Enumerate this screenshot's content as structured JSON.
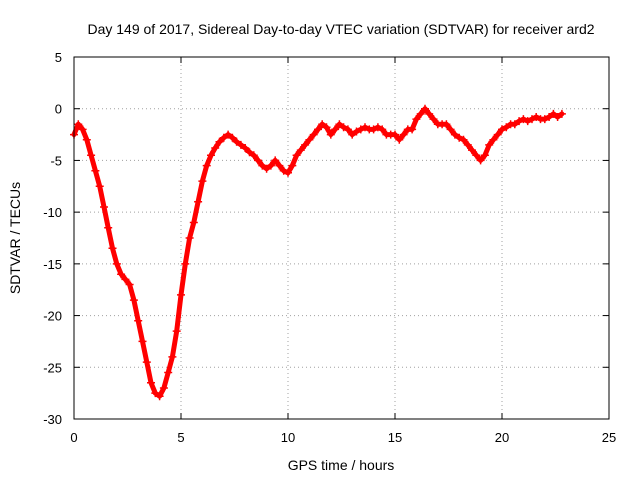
{
  "chart_data": {
    "type": "scatter",
    "title": "Day 149 of 2017, Sidereal Day-to-day VTEC variation (SDTVAR) for receiver ard2",
    "xlabel": "GPS time / hours",
    "ylabel": "SDTVAR / TECUs",
    "xlim": [
      0,
      25
    ],
    "ylim": [
      -30,
      5
    ],
    "xticks": [
      0,
      5,
      10,
      15,
      20,
      25
    ],
    "xtick_labels": [
      "0",
      "5",
      "10",
      "15",
      "20",
      "25"
    ],
    "yticks": [
      5,
      0,
      -5,
      -10,
      -15,
      -20,
      -25,
      -30
    ],
    "ytick_labels": [
      "5",
      "0",
      "-5",
      "-10",
      "-15",
      "-20",
      "-25",
      "-30"
    ],
    "grid": true,
    "marker": "+",
    "series": [
      {
        "name": "SDTVAR",
        "color": "#ff0000",
        "x": [
          0.0,
          0.2,
          0.4,
          0.6,
          0.8,
          1.0,
          1.2,
          1.4,
          1.6,
          1.8,
          2.0,
          2.2,
          2.4,
          2.6,
          2.8,
          3.0,
          3.2,
          3.4,
          3.6,
          3.8,
          4.0,
          4.2,
          4.4,
          4.6,
          4.8,
          5.0,
          5.2,
          5.4,
          5.6,
          5.8,
          6.0,
          6.2,
          6.4,
          6.6,
          6.8,
          7.0,
          7.2,
          7.4,
          7.6,
          7.8,
          8.0,
          8.2,
          8.4,
          8.6,
          8.8,
          9.0,
          9.2,
          9.4,
          9.6,
          9.8,
          10.0,
          10.2,
          10.4,
          10.6,
          10.8,
          11.0,
          11.2,
          11.4,
          11.6,
          11.8,
          12.0,
          12.2,
          12.4,
          12.6,
          12.8,
          13.0,
          13.2,
          13.4,
          13.6,
          13.8,
          14.0,
          14.2,
          14.4,
          14.6,
          14.8,
          15.0,
          15.2,
          15.4,
          15.6,
          15.8,
          16.0,
          16.2,
          16.4,
          16.6,
          16.8,
          17.0,
          17.2,
          17.4,
          17.6,
          17.8,
          18.0,
          18.2,
          18.4,
          18.6,
          18.8,
          19.0,
          19.2,
          19.4,
          19.6,
          19.8,
          20.0,
          20.2,
          20.4,
          20.6,
          20.8,
          21.0,
          21.2,
          21.4,
          21.6,
          21.8,
          22.0,
          22.2,
          22.4,
          22.6,
          22.8
        ],
        "y": [
          -2.5,
          -1.5,
          -2.0,
          -3.0,
          -4.5,
          -6.0,
          -7.5,
          -9.5,
          -11.5,
          -13.5,
          -15.0,
          -16.0,
          -16.5,
          -17.0,
          -18.5,
          -20.5,
          -22.5,
          -24.5,
          -26.5,
          -27.5,
          -27.8,
          -27.0,
          -25.5,
          -24.0,
          -21.5,
          -18.0,
          -15.0,
          -12.5,
          -11.0,
          -9.0,
          -7.0,
          -5.5,
          -4.5,
          -3.8,
          -3.2,
          -2.8,
          -2.5,
          -2.8,
          -3.2,
          -3.5,
          -3.8,
          -4.2,
          -4.5,
          -5.0,
          -5.5,
          -5.8,
          -5.5,
          -5.0,
          -5.5,
          -6.0,
          -6.2,
          -5.5,
          -4.5,
          -4.0,
          -3.5,
          -3.0,
          -2.5,
          -2.0,
          -1.5,
          -1.8,
          -2.5,
          -2.0,
          -1.5,
          -1.8,
          -2.0,
          -2.5,
          -2.2,
          -2.0,
          -1.8,
          -2.0,
          -2.0,
          -1.8,
          -2.0,
          -2.5,
          -2.5,
          -2.5,
          -3.0,
          -2.5,
          -2.0,
          -2.0,
          -1.0,
          -0.5,
          0.0,
          -0.5,
          -1.0,
          -1.5,
          -1.5,
          -1.5,
          -2.0,
          -2.5,
          -2.8,
          -3.0,
          -3.5,
          -4.0,
          -4.5,
          -5.0,
          -4.5,
          -3.5,
          -3.0,
          -2.5,
          -2.0,
          -1.8,
          -1.5,
          -1.5,
          -1.2,
          -1.0,
          -1.2,
          -1.0,
          -0.8,
          -1.0,
          -1.0,
          -0.8,
          -0.5,
          -0.8,
          -0.5
        ]
      }
    ]
  }
}
